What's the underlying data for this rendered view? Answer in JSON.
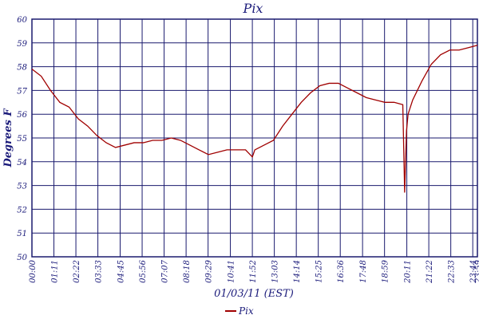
{
  "chart_data": {
    "type": "line",
    "title": "Pix",
    "x_label": "01/03/11 (EST)",
    "y_label": "Degrees F",
    "x": [
      "00:00",
      "00:30",
      "01:00",
      "01:30",
      "02:00",
      "02:30",
      "03:00",
      "03:30",
      "04:00",
      "04:30",
      "05:00",
      "05:30",
      "06:00",
      "06:30",
      "07:00",
      "07:30",
      "08:00",
      "08:30",
      "09:00",
      "09:30",
      "10:00",
      "10:30",
      "11:00",
      "11:30",
      "11:52",
      "12:00",
      "12:30",
      "13:00",
      "13:30",
      "14:00",
      "14:30",
      "15:00",
      "15:30",
      "16:00",
      "16:30",
      "17:00",
      "17:30",
      "18:00",
      "18:30",
      "19:00",
      "19:30",
      "19:58",
      "20:04",
      "20:10",
      "20:15",
      "20:30",
      "21:00",
      "21:30",
      "22:00",
      "22:30",
      "23:00",
      "23:30",
      "23:59"
    ],
    "series": [
      {
        "name": "Pix",
        "color": "#a00000",
        "values": [
          57.9,
          57.6,
          57.0,
          56.5,
          56.3,
          55.8,
          55.5,
          55.1,
          54.8,
          54.6,
          54.7,
          54.8,
          54.8,
          54.9,
          54.9,
          55.0,
          54.9,
          54.7,
          54.5,
          54.3,
          54.4,
          54.5,
          54.5,
          54.5,
          54.2,
          54.5,
          54.7,
          54.9,
          55.5,
          56.0,
          56.5,
          56.9,
          57.2,
          57.3,
          57.3,
          57.1,
          56.9,
          56.7,
          56.6,
          56.5,
          56.5,
          56.4,
          52.7,
          55.3,
          56.0,
          56.6,
          57.4,
          58.1,
          58.5,
          58.7,
          58.7,
          58.8,
          58.9
        ]
      }
    ],
    "xlim": [
      "00:00",
      "23:59"
    ],
    "xticks": [
      "00:00",
      "01:11",
      "02:22",
      "03:33",
      "04:45",
      "05:56",
      "07:07",
      "08:18",
      "09:29",
      "10:41",
      "11:52",
      "13:03",
      "14:14",
      "15:25",
      "16:36",
      "17:48",
      "18:59",
      "20:11",
      "21:22",
      "22:33",
      "23:44",
      "23:59"
    ],
    "ylim": [
      50,
      60
    ],
    "yticks": [
      50,
      51,
      52,
      53,
      54,
      55,
      56,
      57,
      58,
      59,
      60
    ],
    "grid": true
  }
}
